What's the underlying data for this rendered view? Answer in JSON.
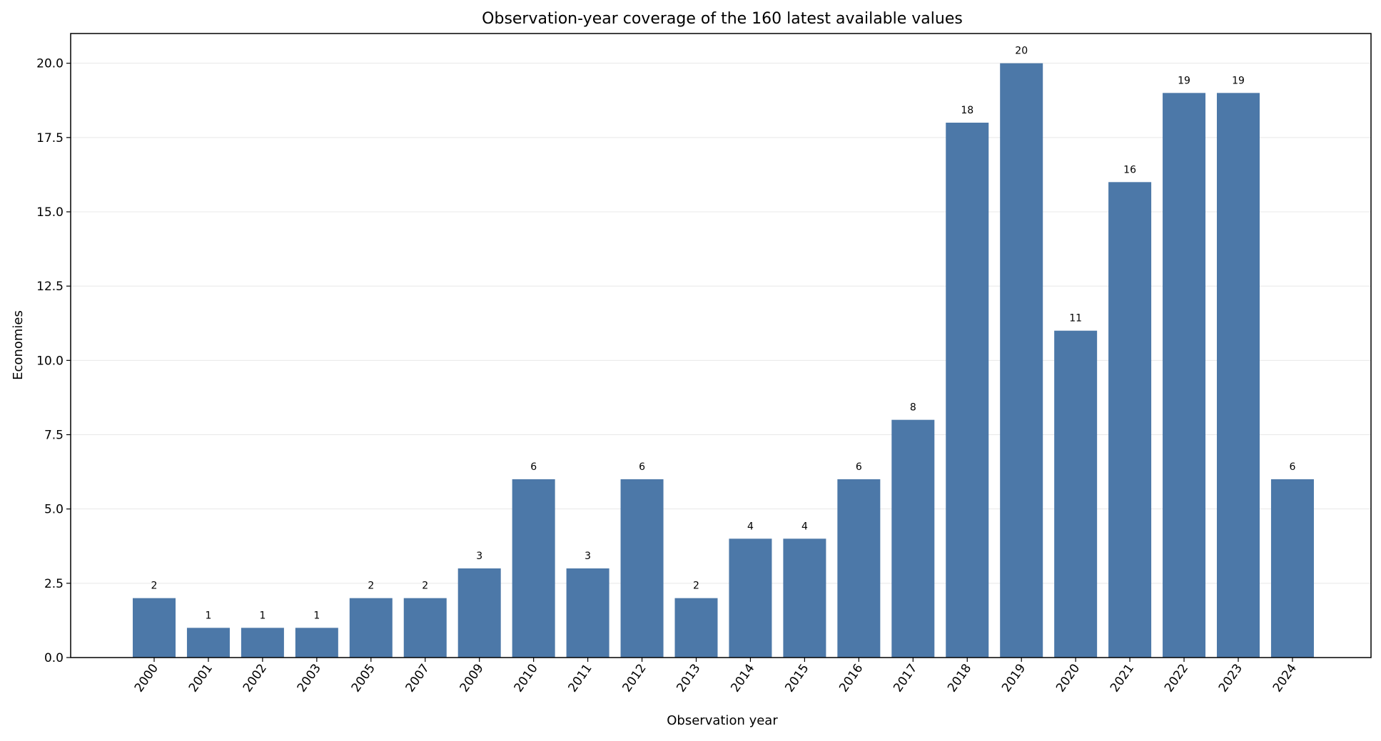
{
  "chart_data": {
    "type": "bar",
    "title": "Observation-year coverage of the 160 latest available values",
    "xlabel": "Observation year",
    "ylabel": "Economies",
    "categories": [
      "2000",
      "2001",
      "2002",
      "2003",
      "2005",
      "2007",
      "2009",
      "2010",
      "2011",
      "2012",
      "2013",
      "2014",
      "2015",
      "2016",
      "2017",
      "2018",
      "2019",
      "2020",
      "2021",
      "2022",
      "2023",
      "2024"
    ],
    "values": [
      2,
      1,
      1,
      1,
      2,
      2,
      3,
      6,
      3,
      6,
      2,
      4,
      4,
      6,
      8,
      18,
      20,
      11,
      16,
      19,
      19,
      6
    ],
    "ylim": [
      0,
      21
    ],
    "yticks": [
      "0.0",
      "2.5",
      "5.0",
      "7.5",
      "10.0",
      "12.5",
      "15.0",
      "17.5",
      "20.0"
    ],
    "grid": "horizontal",
    "bar_color": "#4c78a8",
    "legend": "none"
  }
}
